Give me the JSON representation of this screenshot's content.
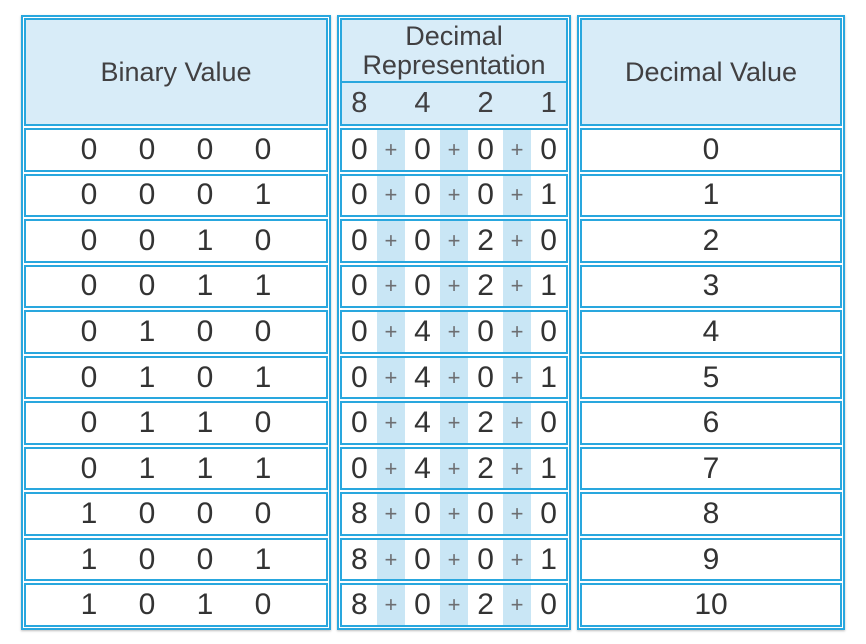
{
  "colors": {
    "border_blue": "#29a7de",
    "header_background": "#d8ecf8",
    "stripe_background": "#c9e6f5",
    "digit_ink": "#333333",
    "header_ink": "#414042",
    "plus_ink": "#6d6e71",
    "page_background": "#ffffff"
  },
  "table": {
    "binary_header": "Binary Value",
    "decimal_rep_header": "Decimal Representation",
    "decimal_value_header": "Decimal Value",
    "place_values": [
      "8",
      "4",
      "2",
      "1"
    ],
    "plus_sign": "+",
    "rows": [
      {
        "bits": [
          "0",
          "0",
          "0",
          "0"
        ],
        "terms": [
          "0",
          "0",
          "0",
          "0"
        ],
        "value": "0"
      },
      {
        "bits": [
          "0",
          "0",
          "0",
          "1"
        ],
        "terms": [
          "0",
          "0",
          "0",
          "1"
        ],
        "value": "1"
      },
      {
        "bits": [
          "0",
          "0",
          "1",
          "0"
        ],
        "terms": [
          "0",
          "0",
          "2",
          "0"
        ],
        "value": "2"
      },
      {
        "bits": [
          "0",
          "0",
          "1",
          "1"
        ],
        "terms": [
          "0",
          "0",
          "2",
          "1"
        ],
        "value": "3"
      },
      {
        "bits": [
          "0",
          "1",
          "0",
          "0"
        ],
        "terms": [
          "0",
          "4",
          "0",
          "0"
        ],
        "value": "4"
      },
      {
        "bits": [
          "0",
          "1",
          "0",
          "1"
        ],
        "terms": [
          "0",
          "4",
          "0",
          "1"
        ],
        "value": "5"
      },
      {
        "bits": [
          "0",
          "1",
          "1",
          "0"
        ],
        "terms": [
          "0",
          "4",
          "2",
          "0"
        ],
        "value": "6"
      },
      {
        "bits": [
          "0",
          "1",
          "1",
          "1"
        ],
        "terms": [
          "0",
          "4",
          "2",
          "1"
        ],
        "value": "7"
      },
      {
        "bits": [
          "1",
          "0",
          "0",
          "0"
        ],
        "terms": [
          "8",
          "0",
          "0",
          "0"
        ],
        "value": "8"
      },
      {
        "bits": [
          "1",
          "0",
          "0",
          "1"
        ],
        "terms": [
          "8",
          "0",
          "0",
          "1"
        ],
        "value": "9"
      },
      {
        "bits": [
          "1",
          "0",
          "1",
          "0"
        ],
        "terms": [
          "8",
          "0",
          "2",
          "0"
        ],
        "value": "10"
      }
    ]
  }
}
